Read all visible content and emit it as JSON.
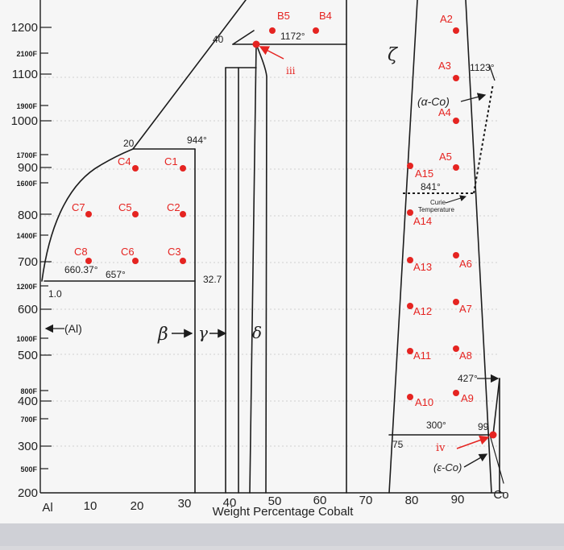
{
  "celsius_ticks": [
    {
      "label": "1200",
      "color": "#222"
    },
    {
      "label": "1100",
      "color": "#222"
    },
    {
      "label": "1000",
      "color": "#222"
    },
    {
      "label": "900",
      "color": "#222"
    },
    {
      "label": "800",
      "color": "#222"
    },
    {
      "label": "700",
      "color": "#222"
    },
    {
      "label": "600",
      "color": "#222"
    },
    {
      "label": "500",
      "color": "#222"
    },
    {
      "label": "400",
      "color": "#222"
    },
    {
      "label": "300",
      "color": "#222"
    },
    {
      "label": "200",
      "color": "#222"
    }
  ],
  "fahrenheit_ticks": [
    "2100F",
    "1900F",
    "1700F",
    "1600F",
    "1400F",
    "1200F",
    "1000F",
    "800F",
    "700F",
    "500F"
  ],
  "x_ticks": [
    "Al",
    "10",
    "20",
    "30",
    "40",
    "50",
    "60",
    "70",
    "80",
    "90",
    "Co"
  ],
  "x_axis_label": "Weight Percentage Cobalt",
  "temperatures": {
    "t1172": "1172°",
    "t944": "944°",
    "t660": "660.37°",
    "t657": "657°",
    "t841": "841°",
    "t1123": "1123°",
    "t427": "427°",
    "t300": "300°"
  },
  "compositions": {
    "c40": "40",
    "c20": "20",
    "c32_7": "32.7",
    "c1_0": "1.0",
    "c75": "75",
    "c99": "99"
  },
  "phases": {
    "zeta": "ζ",
    "alpha_co": "(α-Co)",
    "epsilon_co": "(ε-Co)",
    "al": "(Al)",
    "beta": "β",
    "gamma": "γ",
    "delta": "δ",
    "curie": [
      "Curie",
      "Temperature"
    ]
  },
  "markers": {
    "iii": "iii",
    "iv": "iv"
  },
  "points": [
    {
      "label": "B5"
    },
    {
      "label": "B4"
    },
    {
      "label": "C4"
    },
    {
      "label": "C1"
    },
    {
      "label": "C7"
    },
    {
      "label": "C5"
    },
    {
      "label": "C2"
    },
    {
      "label": "C8"
    },
    {
      "label": "C6"
    },
    {
      "label": "C3"
    },
    {
      "label": "A2"
    },
    {
      "label": "A3"
    },
    {
      "label": "A4"
    },
    {
      "label": "A5"
    },
    {
      "label": "A15"
    },
    {
      "label": "A14"
    },
    {
      "label": "A13"
    },
    {
      "label": "A6"
    },
    {
      "label": "A12"
    },
    {
      "label": "A7"
    },
    {
      "label": "A11"
    },
    {
      "label": "A8"
    },
    {
      "label": "A10"
    },
    {
      "label": "A9"
    }
  ],
  "colors": {
    "point": "#e52421",
    "line": "#1c1c1c",
    "paper": "#f7f7f7"
  }
}
